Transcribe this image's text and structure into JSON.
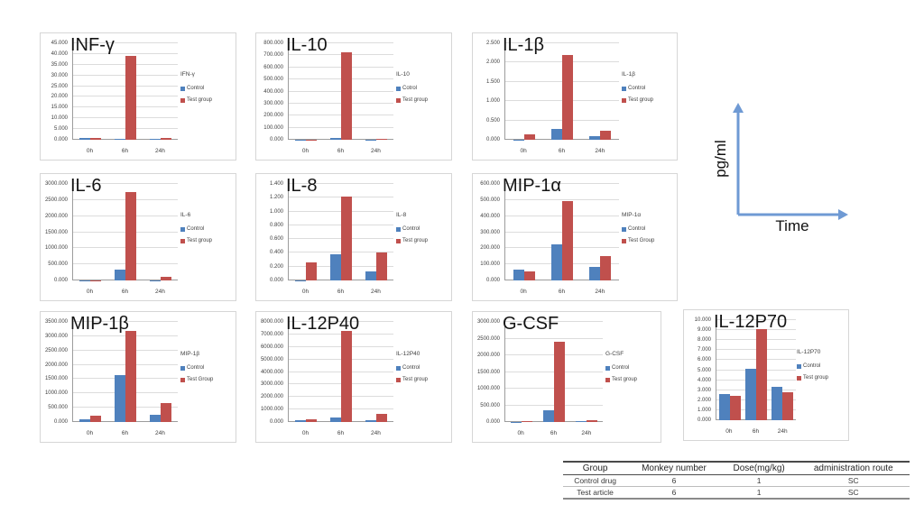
{
  "colors": {
    "control": "#4F81BD",
    "test": "#C0504D",
    "gridline": "#dcdcdc",
    "axis_arrow_blue": "#6f9ad4"
  },
  "axis_annotation": {
    "y_label": "pg/ml",
    "x_label": "Time"
  },
  "table": {
    "headers": [
      "Group",
      "Monkey number",
      "Dose(mg/kg)",
      "administration route"
    ],
    "rows": [
      [
        "Control drug",
        "6",
        "1",
        "SC"
      ],
      [
        "Test article",
        "6",
        "1",
        "SC"
      ]
    ]
  },
  "chart_data": [
    {
      "type": "bar",
      "title": "INF-γ",
      "legend_title": "IFN-γ",
      "categories": [
        "0h",
        "6h",
        "24h"
      ],
      "ylim": [
        0,
        45
      ],
      "ystep": 5,
      "tick_decimals": 3,
      "grid": true,
      "legend_position": "right",
      "series": [
        {
          "name": "Control",
          "color": "#4F81BD",
          "values": [
            0.9,
            0.5,
            0.5
          ]
        },
        {
          "name": "Test group",
          "color": "#C0504D",
          "values": [
            0.8,
            39.2,
            1.0
          ]
        }
      ]
    },
    {
      "type": "bar",
      "title": "IL-10",
      "legend_title": "IL-10",
      "categories": [
        "0h",
        "6h",
        "24h"
      ],
      "ylim": [
        0,
        800
      ],
      "ystep": 100,
      "tick_decimals": 3,
      "grid": true,
      "legend_position": "right",
      "series": [
        {
          "name": "Cotrol",
          "color": "#4F81BD",
          "values": [
            2,
            12,
            2
          ]
        },
        {
          "name": "Test group",
          "color": "#C0504D",
          "values": [
            2,
            725,
            8
          ]
        }
      ]
    },
    {
      "type": "bar",
      "title": "IL-1β",
      "legend_title": "IL-1β",
      "categories": [
        "0h",
        "6h",
        "24h"
      ],
      "ylim": [
        0,
        2.5
      ],
      "ystep": 0.5,
      "tick_decimals": 3,
      "grid": true,
      "legend_position": "right",
      "series": [
        {
          "name": "Control",
          "color": "#4F81BD",
          "values": [
            0.01,
            0.29,
            0.1
          ]
        },
        {
          "name": "Test group",
          "color": "#C0504D",
          "values": [
            0.13,
            2.2,
            0.23
          ]
        }
      ]
    },
    {
      "type": "bar",
      "title": "IL-6",
      "legend_title": "IL-6",
      "categories": [
        "0h",
        "6h",
        "24h"
      ],
      "ylim": [
        0,
        3000
      ],
      "ystep": 500,
      "tick_decimals": 3,
      "grid": true,
      "legend_position": "right",
      "series": [
        {
          "name": "Control",
          "color": "#4F81BD",
          "values": [
            3,
            340,
            5
          ]
        },
        {
          "name": "Test group",
          "color": "#C0504D",
          "values": [
            4,
            2750,
            120
          ]
        }
      ]
    },
    {
      "type": "bar",
      "title": "IL-8",
      "legend_title": "IL-8",
      "categories": [
        "0h",
        "6h",
        "24h"
      ],
      "ylim": [
        0,
        1.4
      ],
      "ystep": 0.2,
      "tick_decimals": 3,
      "grid": true,
      "legend_position": "right",
      "series": [
        {
          "name": "Control",
          "color": "#4F81BD",
          "values": [
            0.005,
            0.38,
            0.13
          ]
        },
        {
          "name": "Test group",
          "color": "#C0504D",
          "values": [
            0.26,
            1.22,
            0.4
          ]
        }
      ]
    },
    {
      "type": "bar",
      "title": "MIP-1α",
      "legend_title": "MIP-1α",
      "categories": [
        "0h",
        "6h",
        "24h"
      ],
      "ylim": [
        0,
        600
      ],
      "ystep": 100,
      "tick_decimals": 3,
      "grid": true,
      "legend_position": "right",
      "series": [
        {
          "name": "Control",
          "color": "#4F81BD",
          "values": [
            70,
            227,
            87
          ]
        },
        {
          "name": "Test Group",
          "color": "#C0504D",
          "values": [
            57,
            492,
            152
          ]
        }
      ]
    },
    {
      "type": "bar",
      "title": "MIP-1β",
      "legend_title": "MIP-1β",
      "categories": [
        "0h",
        "6h",
        "24h"
      ],
      "ylim": [
        0,
        3500
      ],
      "ystep": 500,
      "tick_decimals": 3,
      "grid": true,
      "legend_position": "right",
      "series": [
        {
          "name": "Control",
          "color": "#4F81BD",
          "values": [
            100,
            1650,
            240
          ]
        },
        {
          "name": "Test Group",
          "color": "#C0504D",
          "values": [
            220,
            3180,
            660
          ]
        }
      ]
    },
    {
      "type": "bar",
      "title": "IL-12P40",
      "legend_title": "IL-12P40",
      "categories": [
        "0h",
        "6h",
        "24h"
      ],
      "ylim": [
        0,
        8000
      ],
      "ystep": 1000,
      "tick_decimals": 3,
      "grid": true,
      "legend_position": "right",
      "series": [
        {
          "name": "Control",
          "color": "#4F81BD",
          "values": [
            120,
            330,
            120
          ]
        },
        {
          "name": "Test group",
          "color": "#C0504D",
          "values": [
            200,
            7300,
            640
          ]
        }
      ]
    },
    {
      "type": "bar",
      "title": "G-CSF",
      "legend_title": "G-CSF",
      "categories": [
        "0h",
        "6h",
        "24h"
      ],
      "ylim": [
        0,
        3000
      ],
      "ystep": 500,
      "tick_decimals": 3,
      "grid": true,
      "legend_position": "right",
      "series": [
        {
          "name": "Control",
          "color": "#4F81BD",
          "values": [
            8,
            340,
            30
          ]
        },
        {
          "name": "Test group",
          "color": "#C0504D",
          "values": [
            40,
            2400,
            60
          ]
        }
      ]
    },
    {
      "type": "bar",
      "title": "IL-12P70",
      "legend_title": "IL-12P70",
      "categories": [
        "0h",
        "6h",
        "24h"
      ],
      "ylim": [
        0,
        10
      ],
      "ystep": 1,
      "tick_decimals": 3,
      "grid": true,
      "legend_position": "right",
      "series": [
        {
          "name": "Control",
          "color": "#4F81BD",
          "values": [
            2.6,
            5.15,
            3.3
          ]
        },
        {
          "name": "Test group",
          "color": "#C0504D",
          "values": [
            2.45,
            9.1,
            2.8
          ]
        }
      ]
    }
  ]
}
